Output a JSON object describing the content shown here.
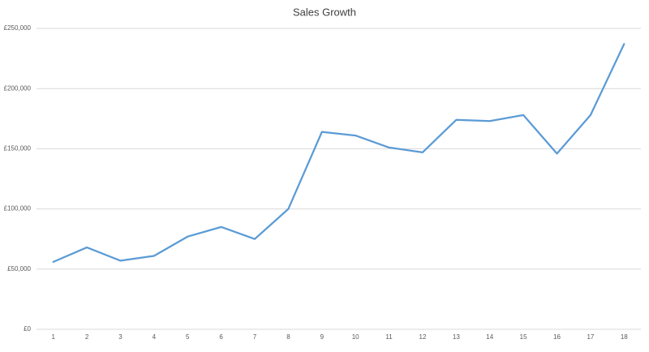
{
  "chart_data": {
    "type": "line",
    "title": "Sales Growth",
    "categories": [
      "1",
      "2",
      "3",
      "4",
      "5",
      "6",
      "7",
      "8",
      "9",
      "10",
      "11",
      "12",
      "13",
      "14",
      "15",
      "16",
      "17",
      "18"
    ],
    "series": [
      {
        "color": "#5b9bd5",
        "values": [
          56000,
          68000,
          57000,
          61000,
          77000,
          85000,
          75000,
          100000,
          164000,
          161000,
          151000,
          147000,
          174000,
          173000,
          178000,
          146000,
          178000,
          237000
        ]
      }
    ],
    "ylim": [
      0,
      250000
    ],
    "yticks": [
      {
        "value": 0,
        "label": "£0"
      },
      {
        "value": 50000,
        "label": "£50,000"
      },
      {
        "value": 100000,
        "label": "£100,000"
      },
      {
        "value": 150000,
        "label": "£150,000"
      },
      {
        "value": 200000,
        "label": "£200,000"
      },
      {
        "value": 250000,
        "label": "£250,000"
      }
    ],
    "grid": true
  }
}
